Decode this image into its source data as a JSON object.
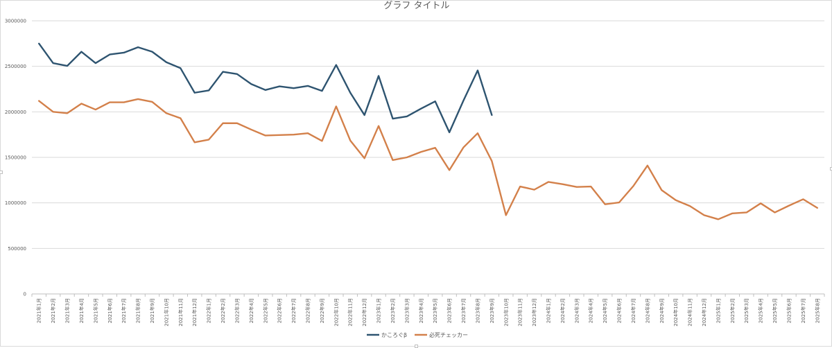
{
  "chart_data": {
    "type": "line",
    "title": "グラフ タイトル",
    "xlabel": "",
    "ylabel": "",
    "ylim": [
      0,
      3000000
    ],
    "y_ticks": [
      "0",
      "500000",
      "1000000",
      "1500000",
      "2000000",
      "2500000",
      "3000000"
    ],
    "grid": true,
    "legend_position": "bottom",
    "categories": [
      "2021年1月",
      "2021年2月",
      "2021年3月",
      "2021年4月",
      "2021年5月",
      "2021年6月",
      "2021年7月",
      "2021年8月",
      "2021年9月",
      "2021年10月",
      "2021年11月",
      "2021年12月",
      "2022年1月",
      "2022年2月",
      "2022年3月",
      "2022年4月",
      "2022年5月",
      "2022年6月",
      "2022年7月",
      "2022年8月",
      "2022年9月",
      "2022年10月",
      "2022年11月",
      "2022年12月",
      "2023年1月",
      "2023年2月",
      "2023年3月",
      "2023年4月",
      "2023年5月",
      "2023年6月",
      "2023年7月",
      "2023年8月",
      "2023年9月",
      "2023年10月",
      "2023年11月",
      "2023年12月",
      "2024年1月",
      "2024年2月",
      "2024年3月",
      "2024年4月",
      "2024年5月",
      "2024年6月",
      "2024年7月",
      "2024年8月",
      "2024年9月",
      "2024年10月",
      "2024年11月",
      "2024年12月",
      "2025年1月",
      "2025年2月",
      "2025年3月",
      "2025年4月",
      "2025年5月",
      "2025年6月",
      "2025年7月",
      "2025年8月"
    ],
    "series": [
      {
        "name": "かころぐβ",
        "color": "#2e5470",
        "values": [
          2750000,
          2535000,
          2505000,
          2660000,
          2535000,
          2630000,
          2650000,
          2710000,
          2660000,
          2545000,
          2480000,
          2210000,
          2235000,
          2440000,
          2415000,
          2305000,
          2240000,
          2280000,
          2260000,
          2285000,
          2230000,
          2515000,
          2210000,
          1965000,
          2395000,
          1925000,
          1950000,
          2035000,
          2115000,
          1775000,
          2125000,
          2455000,
          1965000,
          null,
          null,
          null,
          null,
          null,
          null,
          null,
          null,
          null,
          null,
          null,
          null,
          null,
          null,
          null,
          null,
          null,
          null,
          null,
          null,
          null,
          null,
          null
        ]
      },
      {
        "name": "必死チェッカー",
        "color": "#d3804a",
        "values": [
          2120000,
          2000000,
          1985000,
          2090000,
          2025000,
          2105000,
          2105000,
          2140000,
          2110000,
          1985000,
          1930000,
          1665000,
          1695000,
          1875000,
          1875000,
          1805000,
          1740000,
          1745000,
          1750000,
          1765000,
          1680000,
          2060000,
          1685000,
          1490000,
          1845000,
          1470000,
          1500000,
          1560000,
          1605000,
          1360000,
          1610000,
          1765000,
          1460000,
          865000,
          1180000,
          1145000,
          1230000,
          1205000,
          1175000,
          1180000,
          985000,
          1005000,
          1185000,
          1410000,
          1140000,
          1030000,
          965000,
          865000,
          820000,
          885000,
          895000,
          995000,
          895000,
          970000,
          1040000,
          945000
        ]
      }
    ]
  }
}
